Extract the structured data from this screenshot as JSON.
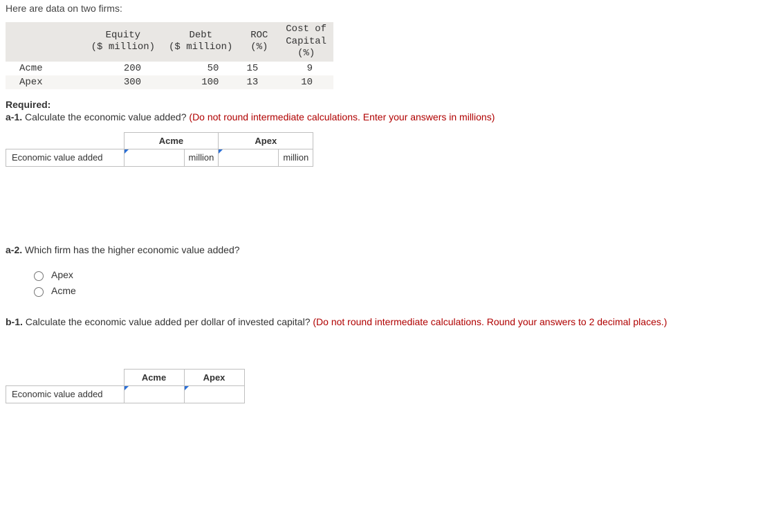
{
  "intro": "Here are data on two firms:",
  "data_table": {
    "columns": [
      {
        "line1": "Equity",
        "line2": "($ million)"
      },
      {
        "line1": "Debt",
        "line2": "($ million)"
      },
      {
        "line1": "ROC",
        "line2": "(%)"
      },
      {
        "line1": "Cost of",
        "line2": "Capital",
        "line3": "(%)"
      }
    ],
    "rows": [
      {
        "label": "Acme",
        "equity": "200",
        "debt": "50",
        "roc": "15",
        "coc": "9"
      },
      {
        "label": "Apex",
        "equity": "300",
        "debt": "100",
        "roc": "13",
        "coc": "10"
      }
    ]
  },
  "required_label": "Required:",
  "a1": {
    "prefix": "a-1.",
    "text": "Calculate the economic value added?",
    "instruction": "(Do not round intermediate calculations. Enter your answers in millions)"
  },
  "answer_table1": {
    "col1": "Acme",
    "col2": "Apex",
    "row_label": "Economic value added",
    "unit": "million",
    "acme_value": "",
    "apex_value": ""
  },
  "a2": {
    "prefix": "a-2.",
    "text": "Which firm has the higher economic value added?"
  },
  "radio_options": {
    "opt1": "Apex",
    "opt2": "Acme"
  },
  "b1": {
    "prefix": "b-1.",
    "text": "Calculate the economic value added per dollar of invested capital?",
    "instruction": "(Do not round intermediate calculations. Round your answers to 2 decimal places.)"
  },
  "answer_table2": {
    "col1": "Acme",
    "col2": "Apex",
    "row_label": "Economic value added",
    "acme_value": "",
    "apex_value": ""
  }
}
